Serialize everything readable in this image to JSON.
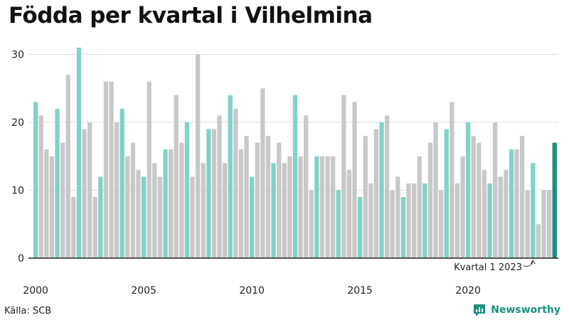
{
  "title": "Födda per kvartal i Vilhelmina",
  "source": "Källa: SCB",
  "brand": {
    "name": "Newsworthy",
    "icon": "bar-chart-logo-icon"
  },
  "colors": {
    "regular": "#c8c8c8",
    "q1": "#7fd3c8",
    "latest": "#1a8f82",
    "grid": "#dddddd",
    "axis": "#222222"
  },
  "chart_data": {
    "type": "bar",
    "title": "Födda per kvartal i Vilhelmina",
    "xlabel": "",
    "ylabel": "",
    "ylim": [
      0,
      32
    ],
    "yticks": [
      0,
      10,
      20,
      30
    ],
    "grid": true,
    "x_start": {
      "year": 2000,
      "quarter": 1
    },
    "xticks": [
      "2000",
      "2005",
      "2010",
      "2015",
      "2020"
    ],
    "values": [
      23,
      21,
      16,
      15,
      22,
      17,
      27,
      9,
      31,
      19,
      20,
      9,
      12,
      26,
      26,
      20,
      22,
      15,
      17,
      13,
      12,
      26,
      14,
      12,
      16,
      16,
      24,
      17,
      20,
      12,
      30,
      14,
      19,
      19,
      21,
      14,
      24,
      22,
      16,
      18,
      12,
      17,
      25,
      18,
      14,
      17,
      14,
      15,
      24,
      15,
      21,
      10,
      15,
      15,
      15,
      15,
      10,
      24,
      13,
      23,
      9,
      18,
      11,
      19,
      20,
      21,
      10,
      12,
      9,
      11,
      11,
      15,
      11,
      17,
      20,
      10,
      19,
      23,
      11,
      15,
      20,
      18,
      17,
      13,
      11,
      20,
      12,
      13,
      16,
      16,
      18,
      10,
      14,
      5,
      10,
      10,
      17
    ],
    "annotation": {
      "label": "Kvartal 1 2023",
      "target_index": 92
    }
  }
}
